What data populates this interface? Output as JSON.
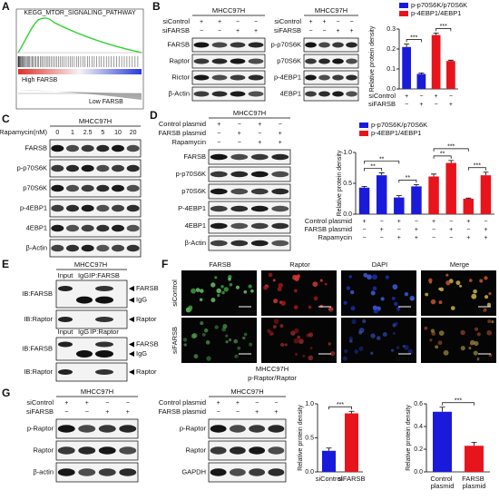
{
  "panels": {
    "A": {
      "label": "A",
      "title": "KEGG_MTOR_SIGNALING_PATHWAY",
      "high": "High FARSB",
      "low": "Low FARSB"
    },
    "B": {
      "label": "B",
      "blots": [
        {
          "cell_line": "MHCC97H",
          "treatments": [
            {
              "name": "siControl",
              "signs": [
                "+",
                "+",
                "−",
                "−"
              ]
            },
            {
              "name": "siFARSB",
              "signs": [
                "−",
                "−",
                "+",
                "+"
              ]
            }
          ],
          "rows": [
            "FARSB",
            "Raptor",
            "Rictor",
            "β-Actin"
          ]
        },
        {
          "cell_line": "MHCC97H",
          "treatments": [
            {
              "name": "siControl",
              "signs": [
                "+",
                "+",
                "−",
                "−"
              ]
            },
            {
              "name": "siFARSB",
              "signs": [
                "−",
                "−",
                "+",
                "+"
              ]
            }
          ],
          "rows": [
            "p-p70S6K",
            "p70S6K",
            "p-4EBP1",
            "4EBP1"
          ]
        }
      ]
    },
    "C": {
      "label": "C",
      "blots": [
        {
          "cell_line": "MHCC97H",
          "treatments": [
            {
              "name": "Rapamycin(nM)",
              "signs": [
                "0",
                "1",
                "2.5",
                "5",
                "10",
                "20"
              ]
            }
          ],
          "rows": [
            "FARSB",
            "p-p70S6K",
            "p70S6K",
            "p-4EBP1",
            "4EBP1",
            "β-Actin"
          ]
        }
      ]
    },
    "D": {
      "label": "D",
      "blots": [
        {
          "cell_line": "MHCC97H",
          "treatments": [
            {
              "name": "Control plasmid",
              "signs": [
                "+",
                "−",
                "+",
                "−"
              ]
            },
            {
              "name": "FARSB plasmid",
              "signs": [
                "−",
                "+",
                "−",
                "+"
              ]
            },
            {
              "name": "Rapamycin",
              "signs": [
                "−",
                "−",
                "+",
                "+"
              ]
            }
          ],
          "rows": [
            "FARSB",
            "p-p70S6K",
            "p70S6K",
            "P-4EBP1",
            "4EBP1",
            "β-Actin"
          ]
        }
      ]
    },
    "E": {
      "label": "E",
      "cell_line": "MHCC97H",
      "blocks": [
        {
          "lanes": [
            "Input",
            "IgG",
            "IP:FARSB"
          ],
          "rows": [
            "IB:FARSB",
            "IB:Raptor"
          ],
          "arrows": [
            "FARSB",
            "IgG",
            "Raptor"
          ]
        },
        {
          "lanes": [
            "Input",
            "IgG",
            "IP:Raptor"
          ],
          "rows": [
            "IB:FARSB",
            "IB:Raptor"
          ],
          "arrows": [
            "FARSB",
            "IgG",
            "Raptor"
          ]
        }
      ]
    },
    "F": {
      "label": "F",
      "channels": [
        "FARSB",
        "Raptor",
        "DAPI",
        "Merge"
      ],
      "groups": [
        "siControl",
        "siFARSB"
      ],
      "scale": "100um",
      "cell_line": "MHCC97H"
    },
    "G": {
      "label": "G",
      "blots": [
        {
          "cell_line": "MHCC97H",
          "treatments": [
            {
              "name": "siControl",
              "signs": [
                "+",
                "+",
                "−",
                "−"
              ]
            },
            {
              "name": "siFARSB",
              "signs": [
                "−",
                "−",
                "+",
                "+"
              ]
            }
          ],
          "rows": [
            "p-Raptor",
            "Raptor",
            "β-actin"
          ]
        },
        {
          "cell_line": "MHCC97H",
          "treatments": [
            {
              "name": "Control plasmid",
              "signs": [
                "+",
                "+",
                "−",
                "−"
              ]
            },
            {
              "name": "FARSB plasmid",
              "signs": [
                "−",
                "−",
                "+",
                "+"
              ]
            }
          ],
          "rows": [
            "p-Raptor",
            "Raptor",
            "GAPDH"
          ]
        }
      ],
      "chart_title": "p-Raptor/Raptor"
    }
  },
  "chart_data": [
    {
      "type": "bar",
      "ylabel": "Relative protein density",
      "ylim": [
        0,
        0.3
      ],
      "yticks": [
        {
          "value": 0,
          "label": "0.0"
        },
        0.1,
        0.2,
        0.3
      ],
      "series": [
        {
          "name": "p-p70S6K/p70S6K",
          "color": "#1a1adb",
          "values": [
            0.21,
            0.075,
            null,
            null
          ],
          "errors": [
            0.015,
            0.005,
            null,
            null
          ]
        },
        {
          "name": "p-4EBP1/4EBP1",
          "color": "#e8141c",
          "values": [
            null,
            null,
            0.27,
            0.14
          ],
          "errors": [
            null,
            null,
            0.01,
            0.004
          ]
        }
      ],
      "conditions": [
        {
          "name": "siControl",
          "signs": [
            "+",
            "−",
            "+",
            "−"
          ]
        },
        {
          "name": "siFARSB",
          "signs": [
            "−",
            "+",
            "−",
            "+"
          ]
        }
      ],
      "significance": [
        "***",
        "***"
      ]
    },
    {
      "type": "bar",
      "ylabel": "Relative protein density",
      "ylim": [
        0,
        1.0
      ],
      "yticks": [
        {
          "value": 0,
          "label": "0.0"
        },
        0.5,
        {
          "value": 1.0,
          "label": "1.0"
        }
      ],
      "series": [
        {
          "name": "p-p70S6K/p70S6K",
          "color": "#1a1adb",
          "values": [
            0.43,
            0.63,
            0.27,
            0.45,
            null,
            null,
            null,
            null
          ],
          "errors": [
            0.02,
            0.04,
            0.03,
            0.03,
            null,
            null,
            null,
            null
          ]
        },
        {
          "name": "p-4EBP1/4EBP1",
          "color": "#e8141c",
          "values": [
            null,
            null,
            null,
            null,
            0.61,
            0.83,
            0.25,
            0.63
          ],
          "errors": [
            null,
            null,
            null,
            null,
            0.04,
            0.04,
            0.01,
            0.05
          ]
        }
      ],
      "conditions": [
        {
          "name": "Control plasmid",
          "signs": [
            "+",
            "−",
            "+",
            "−",
            "+",
            "−",
            "+",
            "−"
          ]
        },
        {
          "name": "FARSB plasmid",
          "signs": [
            "−",
            "+",
            "−",
            "+",
            "−",
            "+",
            "−",
            "+"
          ]
        },
        {
          "name": "Rapamycin",
          "signs": [
            "−",
            "−",
            "+",
            "+",
            "−",
            "−",
            "+",
            "+"
          ]
        }
      ],
      "significance": [
        "**",
        "**",
        "**",
        "**",
        "***",
        "***"
      ]
    },
    {
      "type": "bar",
      "ylabel": "Relative protein density",
      "ylim": [
        0,
        1.0
      ],
      "yticks": [
        {
          "value": 0,
          "label": "0.0"
        },
        0.5,
        {
          "value": 1.0,
          "label": "1.0"
        }
      ],
      "categories": [
        "siControl",
        "siFARSB"
      ],
      "values": [
        0.31,
        0.86
      ],
      "errors": [
        0.04,
        0.03
      ],
      "colors": [
        "#1a1adb",
        "#e8141c"
      ],
      "significance": [
        "***"
      ]
    },
    {
      "type": "bar",
      "ylabel": "Relative protein density",
      "ylim": [
        0,
        0.6
      ],
      "yticks": [
        {
          "value": 0,
          "label": "0.0"
        },
        0.2,
        0.4,
        0.6
      ],
      "categories": [
        "Control plasmid",
        "FARSB plasmid"
      ],
      "values": [
        0.53,
        0.23
      ],
      "errors": [
        0.04,
        0.03
      ],
      "colors": [
        "#1a1adb",
        "#e8141c"
      ],
      "significance": [
        "***"
      ]
    }
  ]
}
